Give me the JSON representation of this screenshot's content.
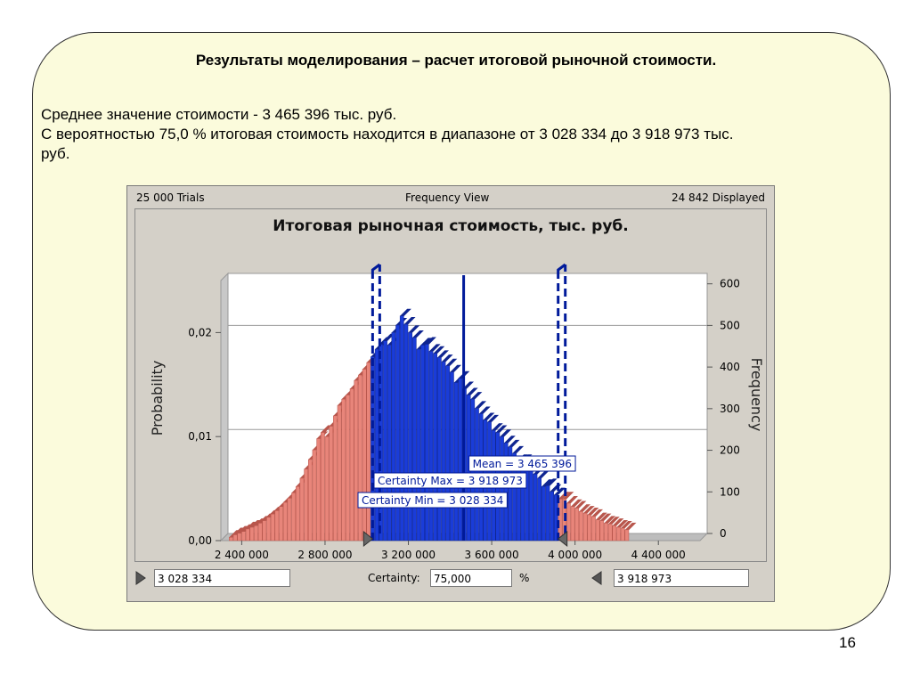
{
  "slide": {
    "title": "Результаты моделирования – расчет итоговой рыночной стоимости.",
    "line1": "Среднее значение стоимости - 3 465 396 тыс. руб.",
    "line2": "С вероятностью 75,0 % итоговая стоимость находится в диапазоне от 3 028 334 до 3 918 973 тыс.",
    "line3": "руб.",
    "page_number": "16"
  },
  "window": {
    "trials": "25 000 Trials",
    "view": "Frequency View",
    "displayed": "24 842 Displayed"
  },
  "controls": {
    "left_value": "3 028 334",
    "certainty_label": "Certainty:",
    "certainty_value": "75,000",
    "percent": "%",
    "right_value": "3 918 973"
  },
  "colors": {
    "in_range": "#1a3cd8",
    "out_range": "#e8857a",
    "marker": "#001a9a",
    "plot_bg": "#ffffff",
    "panel_bg": "#fbfbdc"
  },
  "chart_data": {
    "type": "bar",
    "title": "Итоговая рыночная стоимость, тыс. руб.",
    "ylabel": "Probability",
    "y2label": "Frequency",
    "xlim": [
      2300000,
      4600000
    ],
    "ylim": [
      0,
      0.025
    ],
    "y2lim": [
      0,
      625
    ],
    "x_ticks": [
      "2 400 000",
      "2 800 000",
      "3 200 000",
      "3 600 000",
      "4 000 000",
      "4 400 000"
    ],
    "x_tick_values": [
      2400000,
      2800000,
      3200000,
      3600000,
      4000000,
      4400000
    ],
    "y_ticks": [
      "0,00",
      "0,01",
      "0,02"
    ],
    "y_tick_values": [
      0,
      0.01,
      0.02
    ],
    "y2_ticks": [
      "0",
      "100",
      "200",
      "300",
      "400",
      "500",
      "600"
    ],
    "y2_tick_values": [
      0,
      100,
      200,
      300,
      400,
      500,
      600
    ],
    "grid": true,
    "bin_width": 20000,
    "bin_start": 2340000,
    "frequencies": [
      8,
      14,
      18,
      22,
      28,
      32,
      36,
      42,
      48,
      56,
      64,
      72,
      82,
      92,
      102,
      115,
      130,
      150,
      172,
      195,
      218,
      245,
      260,
      250,
      275,
      300,
      325,
      340,
      350,
      365,
      385,
      398,
      412,
      428,
      442,
      460,
      472,
      480,
      470,
      500,
      518,
      540,
      520,
      500,
      488,
      460,
      470,
      472,
      455,
      450,
      440,
      430,
      420,
      405,
      380,
      390,
      365,
      350,
      340,
      318,
      305,
      290,
      285,
      265,
      260,
      250,
      235,
      225,
      210,
      190,
      190,
      178,
      170,
      160,
      150,
      130,
      132,
      118,
      110,
      100,
      100,
      90,
      82,
      78,
      70,
      66,
      62,
      58,
      50,
      48,
      42,
      40,
      36,
      32,
      30,
      26
    ],
    "certainty_min": 3028334,
    "certainty_max": 3918973,
    "mean": 3465396,
    "labels": {
      "mean": "Mean = 3 465 396",
      "cmax": "Certainty Max = 3 918 973",
      "cmin": "Certainty Min = 3 028 334"
    }
  }
}
